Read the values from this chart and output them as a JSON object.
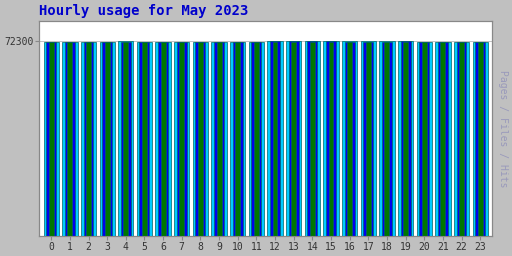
{
  "title": "Hourly usage for May 2023",
  "title_color": "#0000cc",
  "title_fontsize": 10,
  "ylabel_right": "Pages / Files / Hits",
  "background_color": "#c0c0c0",
  "plot_bg_color": "#ffffff",
  "hours": [
    0,
    1,
    2,
    3,
    4,
    5,
    6,
    7,
    8,
    9,
    10,
    11,
    12,
    13,
    14,
    15,
    16,
    17,
    18,
    19,
    20,
    21,
    22,
    23
  ],
  "hits": [
    72180,
    72160,
    72155,
    72220,
    72295,
    72270,
    72255,
    72245,
    72252,
    72258,
    72262,
    72282,
    72322,
    72338,
    72365,
    72348,
    72312,
    72308,
    72308,
    72345,
    72242,
    72248,
    72272,
    72258
  ],
  "files": [
    72155,
    72135,
    72130,
    72195,
    72268,
    72245,
    72230,
    72218,
    72228,
    72233,
    72238,
    72258,
    72298,
    72312,
    72338,
    72322,
    72288,
    72282,
    72282,
    72318,
    72218,
    72222,
    72248,
    72232
  ],
  "pages": [
    72120,
    72100,
    72095,
    72160,
    72212,
    72192,
    72178,
    72162,
    72172,
    72178,
    72182,
    72202,
    72242,
    72258,
    72282,
    72268,
    72232,
    72228,
    72228,
    72262,
    72162,
    72168,
    72192,
    72178
  ],
  "hits_color": "#00ccff",
  "files_color": "#0000ee",
  "pages_color": "#007700",
  "bar_edge_color": "#006666",
  "ymin": 0,
  "ymax": 80000,
  "ytick_val": 72300,
  "bar_width": 0.82
}
